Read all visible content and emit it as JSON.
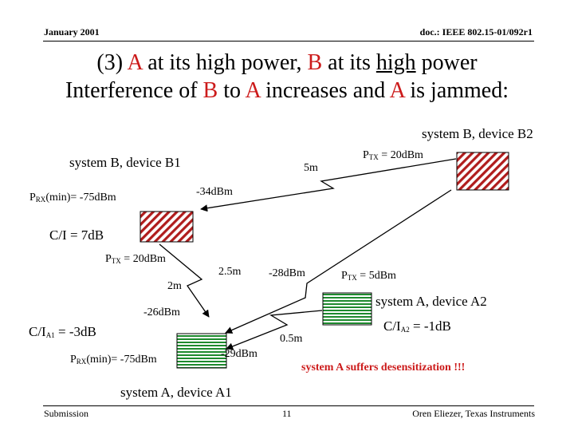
{
  "header": {
    "date": "January 2001",
    "doc": "doc.: IEEE 802.15-01/092r1"
  },
  "title": {
    "line1_prefix": "(3)",
    "line1_a": "A",
    "line1_mid": "at its high power,",
    "line1_b": "B",
    "line1_at": "at its",
    "line1_high": "high",
    "line1_end": "power",
    "line2_pre": "Interference of",
    "line2_b": "B",
    "line2_to": "to",
    "line2_a1": "A",
    "line2_mid": "increases and",
    "line2_a2": "A",
    "line2_end": "is jammed:"
  },
  "labels": {
    "b2_name": "system B, device B2",
    "b1_name": "system B, device B1",
    "ptx_b2_base": "P",
    "ptx_b2_sub": "TX",
    "ptx_b2_val": "= 20dBm",
    "dist_5m": "5m",
    "prx_b1_base": "P",
    "prx_b1_sub": "RX",
    "prx_b1_val": "(min)= -75dBm",
    "level_34": "-34dBm",
    "ci_b": "C/I = 7dB",
    "ptx_a1_base": "P",
    "ptx_a1_sub": "TX",
    "ptx_a1_val": "= 20dBm",
    "dist_25m": "2.5m",
    "level_28": "-28dBm",
    "ptx_a2_base": "P",
    "ptx_a2_sub": "TX",
    "ptx_a2_val": "= 5dBm",
    "dist_2m": "2m",
    "a2_name": "system A, device A2",
    "level_26": "-26dBm",
    "ci_a2_base": "C/I",
    "ci_a2_sub": "A2",
    "ci_a2_val": "= -1dB",
    "ci_a1_base": "C/I",
    "ci_a1_sub": "A1",
    "ci_a1_val": "= -3dB",
    "dist_05m": "0.5m",
    "prx_a1_base": "P",
    "prx_a1_sub": "RX",
    "prx_a1_val": "(min)= -75dBm",
    "level_29": "-29dBm",
    "desens": "system A suffers desensitization !!!",
    "a1_name": "system A, device A1"
  },
  "footer": {
    "left": "Submission",
    "page": "11",
    "right": "Oren Eliezer, Texas Instruments"
  },
  "colors": {
    "system_b": "#b01c1c",
    "system_a": "#1e8a2e",
    "desens_text": "#cc1b1b"
  }
}
